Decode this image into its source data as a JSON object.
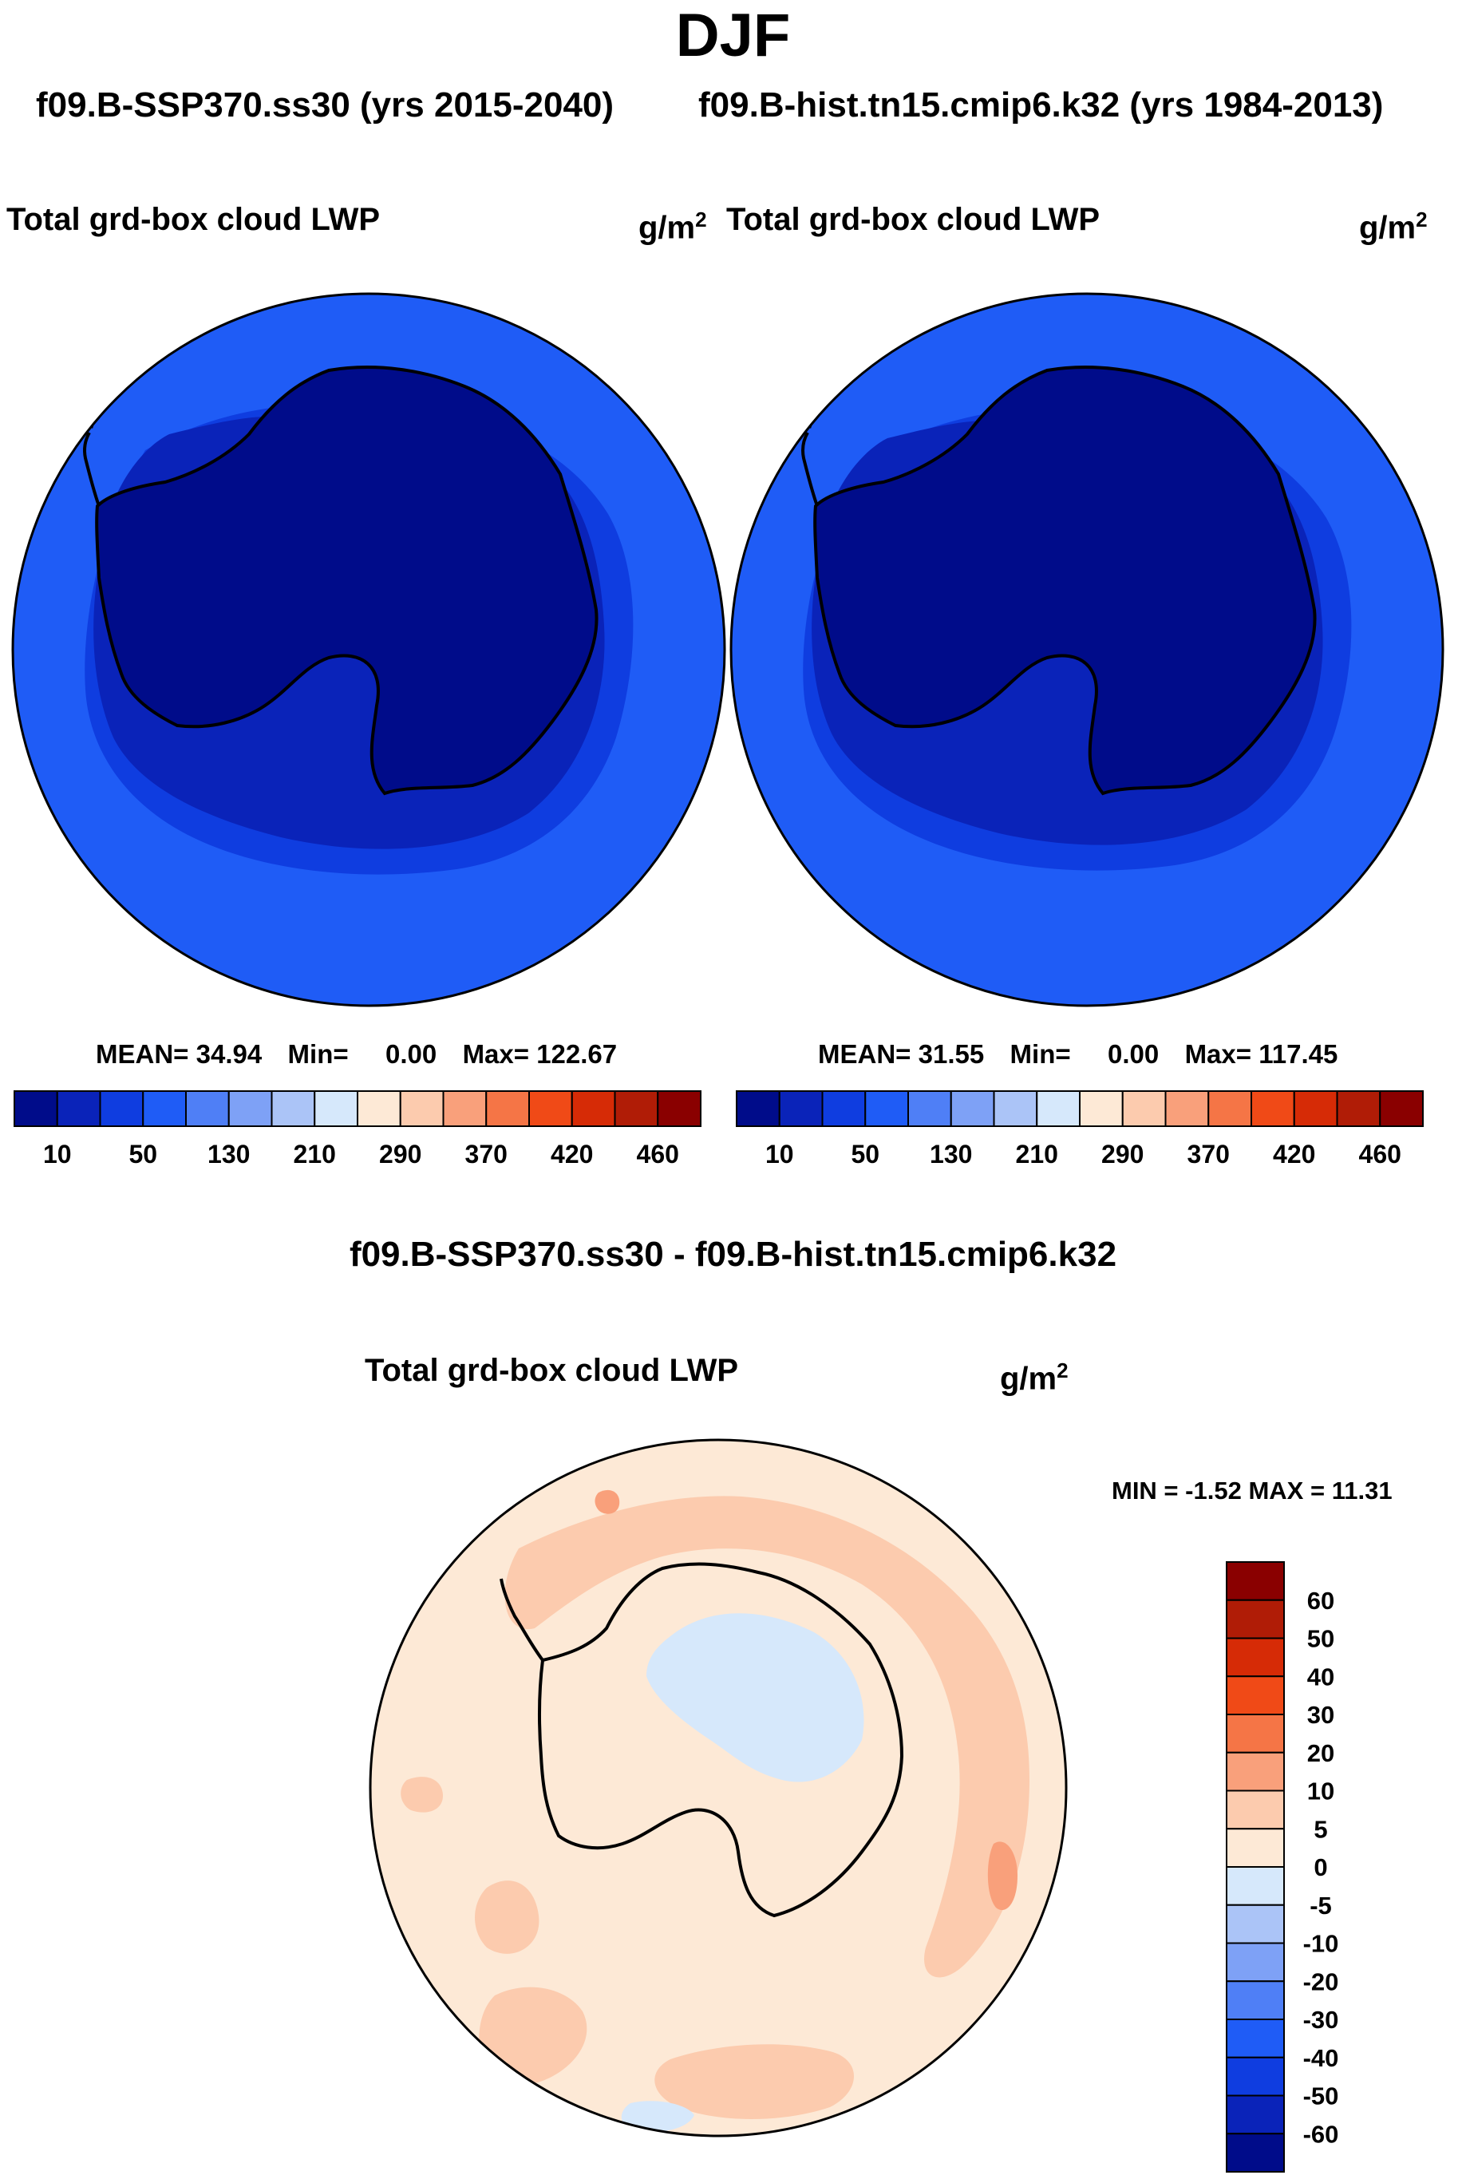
{
  "page": {
    "season": "DJF",
    "subtitle_left": "f09.B-SSP370.ss30 (yrs 2015-2040)",
    "subtitle_right": "f09.B-hist.tn15.cmip6.k32 (yrs 1984-2013)",
    "diff_title": "f09.B-SSP370.ss30 - f09.B-hist.tn15.cmip6.k32"
  },
  "panels": [
    {
      "variable": "Total grd-box cloud LWP",
      "units_base": "g/m",
      "units_exp": "2",
      "mean_label": "MEAN=",
      "mean_value": "34.94",
      "min_label": "Min=",
      "min_value": "0.00",
      "max_label": "Max=",
      "max_value": "122.67"
    },
    {
      "variable": "Total grd-box cloud LWP",
      "units_base": "g/m",
      "units_exp": "2",
      "mean_label": "MEAN=",
      "mean_value": "31.55",
      "min_label": "Min=",
      "min_value": "0.00",
      "max_label": "Max=",
      "max_value": "117.45"
    }
  ],
  "diff_panel": {
    "variable": "Total grd-box cloud LWP",
    "units_base": "g/m",
    "units_exp": "2",
    "min_label": "MIN =",
    "min_value": "-1.52",
    "max_label": "MAX =",
    "max_value": "11.31"
  },
  "colorbar_abs": {
    "colors": [
      "#000c8a",
      "#0a23b9",
      "#0f3de0",
      "#1f5cf6",
      "#4f7ff6",
      "#7ea1f6",
      "#abc4f7",
      "#d6e8fb",
      "#fde9d6",
      "#fccbae",
      "#f9a07b",
      "#f57546",
      "#f04a17",
      "#d62b06",
      "#b01c06",
      "#8a0000"
    ],
    "ticks": [
      "10",
      "50",
      "130",
      "210",
      "290",
      "370",
      "420",
      "460"
    ]
  },
  "colorbar_diff": {
    "colors": [
      "#000c8a",
      "#0a23b9",
      "#0f3de0",
      "#1f5cf6",
      "#4f7ff6",
      "#7ea1f6",
      "#abc4f7",
      "#d6e8fb",
      "#fde9d6",
      "#fccbae",
      "#f9a07b",
      "#f57546",
      "#f04a17",
      "#d62b06",
      "#b01c06",
      "#8a0000"
    ],
    "ticks": [
      "60",
      "50",
      "40",
      "30",
      "20",
      "10",
      "5",
      "0",
      "-5",
      "-10",
      "-20",
      "-30",
      "-40",
      "-50",
      "-60"
    ]
  },
  "map_colors": {
    "ocean_outer": "#1f5cf6",
    "ocean_mid": "#0f3de0",
    "ocean_inner": "#0a23b9",
    "continent": "#000c8a",
    "diff_base": "#fde9d6",
    "diff_pos": "#fccbae",
    "diff_pos2": "#f9a07b",
    "diff_neg": "#d6e8fb"
  }
}
